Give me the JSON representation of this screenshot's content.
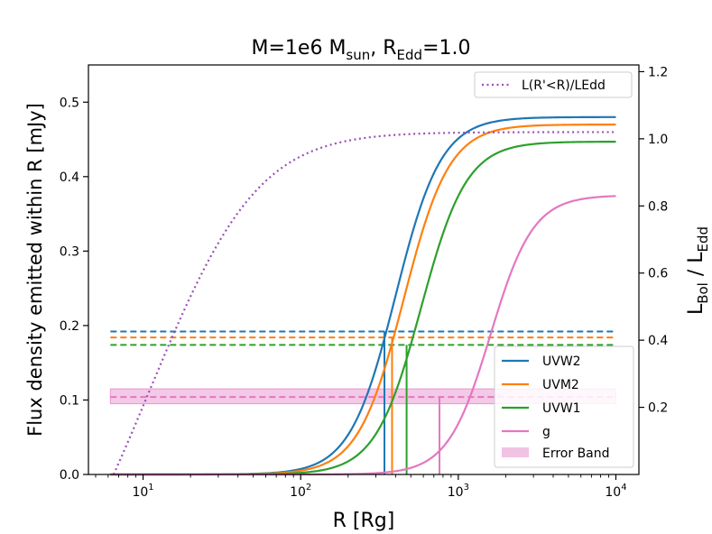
{
  "chart_data": {
    "type": "line",
    "title": {
      "main": "M=1e6 M",
      "sub1": "sun",
      "mid": ", R",
      "sub2": "Edd",
      "tail": "=1.0"
    },
    "xlabel": "R [Rg]",
    "xscale": "log",
    "xlim": [
      4.5,
      14000
    ],
    "xticks": [
      {
        "value": 10,
        "base": "10",
        "exp": "1"
      },
      {
        "value": 100,
        "base": "10",
        "exp": "2"
      },
      {
        "value": 1000,
        "base": "10",
        "exp": "3"
      },
      {
        "value": 10000,
        "base": "10",
        "exp": "4"
      }
    ],
    "ylabel": "Flux density emitted within R [mJy]",
    "ylim": [
      0,
      0.55
    ],
    "yticks": [
      "0.0",
      "0.1",
      "0.2",
      "0.3",
      "0.4",
      "0.5"
    ],
    "y2label": {
      "main": "L",
      "sub1": "Bol",
      "mid": " / L",
      "sub2": "Edd"
    },
    "y2lim": [
      0,
      1.22
    ],
    "y2ticks": [
      "0.2",
      "0.4",
      "0.6",
      "0.8",
      "1.0",
      "1.2"
    ],
    "series": [
      {
        "name": "UVW2",
        "color": "#1f77b4",
        "final": 0.48,
        "half_r": 400,
        "steep": 3.0,
        "dashed_level": 0.192,
        "cross_r": 340
      },
      {
        "name": "UVM2",
        "color": "#ff7f0e",
        "final": 0.47,
        "half_r": 450,
        "steep": 3.0,
        "dashed_level": 0.184,
        "cross_r": 380
      },
      {
        "name": "UVW1",
        "color": "#2ca02c",
        "final": 0.447,
        "half_r": 580,
        "steep": 3.0,
        "dashed_level": 0.174,
        "cross_r": 470
      },
      {
        "name": "g",
        "color": "#e377c2",
        "final": 0.375,
        "half_r": 1600,
        "steep": 3.2,
        "dashed_level": 0.104,
        "cross_r": 760
      }
    ],
    "band": {
      "name": "Error Band",
      "color": "#e377c2",
      "low": 0.095,
      "high": 0.115
    },
    "bolometric": {
      "name": "L(R'<R)/LEdd",
      "color": "#9a4fb5",
      "start_r": 6.5,
      "final": 1.02,
      "scale": 25,
      "power": 1.7
    },
    "legend_upper": "top-right",
    "legend_lower": "bottom-right"
  }
}
